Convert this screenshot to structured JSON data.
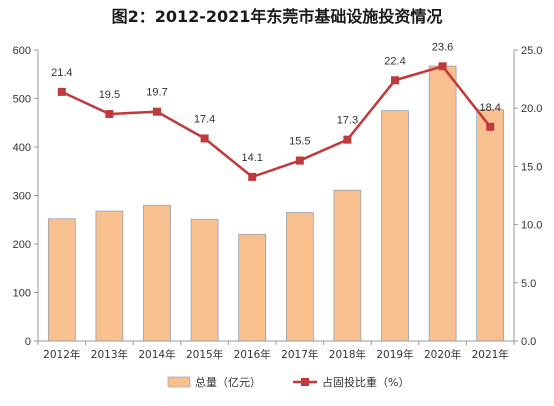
{
  "chart_data": {
    "type": "bar+line",
    "title": "图2：2012-2021年东莞市基础设施投资情况",
    "categories": [
      "2012年",
      "2013年",
      "2014年",
      "2015年",
      "2016年",
      "2017年",
      "2018年",
      "2019年",
      "2020年",
      "2021年"
    ],
    "series": [
      {
        "name": "总量（亿元）",
        "type": "bar",
        "axis": "left",
        "color": "#F9C08F",
        "values": [
          252,
          268,
          280,
          251,
          220,
          265,
          311,
          475,
          567,
          477
        ]
      },
      {
        "name": "占固投比重（%）",
        "type": "line",
        "axis": "right",
        "color": "#C0393B",
        "values": [
          21.4,
          19.5,
          19.7,
          17.4,
          14.1,
          15.5,
          17.3,
          22.4,
          23.6,
          18.4
        ],
        "labels": [
          "21.4",
          "19.5",
          "19.7",
          "17.4",
          "14.1",
          "15.5",
          "17.3",
          "22.4",
          "23.6",
          "18.4"
        ]
      }
    ],
    "ylim_left": [
      0,
      600
    ],
    "yticks_left": [
      "0",
      "100",
      "200",
      "300",
      "400",
      "500",
      "600"
    ],
    "ylim_right": [
      0,
      25
    ],
    "yticks_right": [
      "0.0",
      "5.0",
      "10.0",
      "15.0",
      "20.0",
      "25.0"
    ],
    "legend_position": "bottom",
    "grid": false
  }
}
